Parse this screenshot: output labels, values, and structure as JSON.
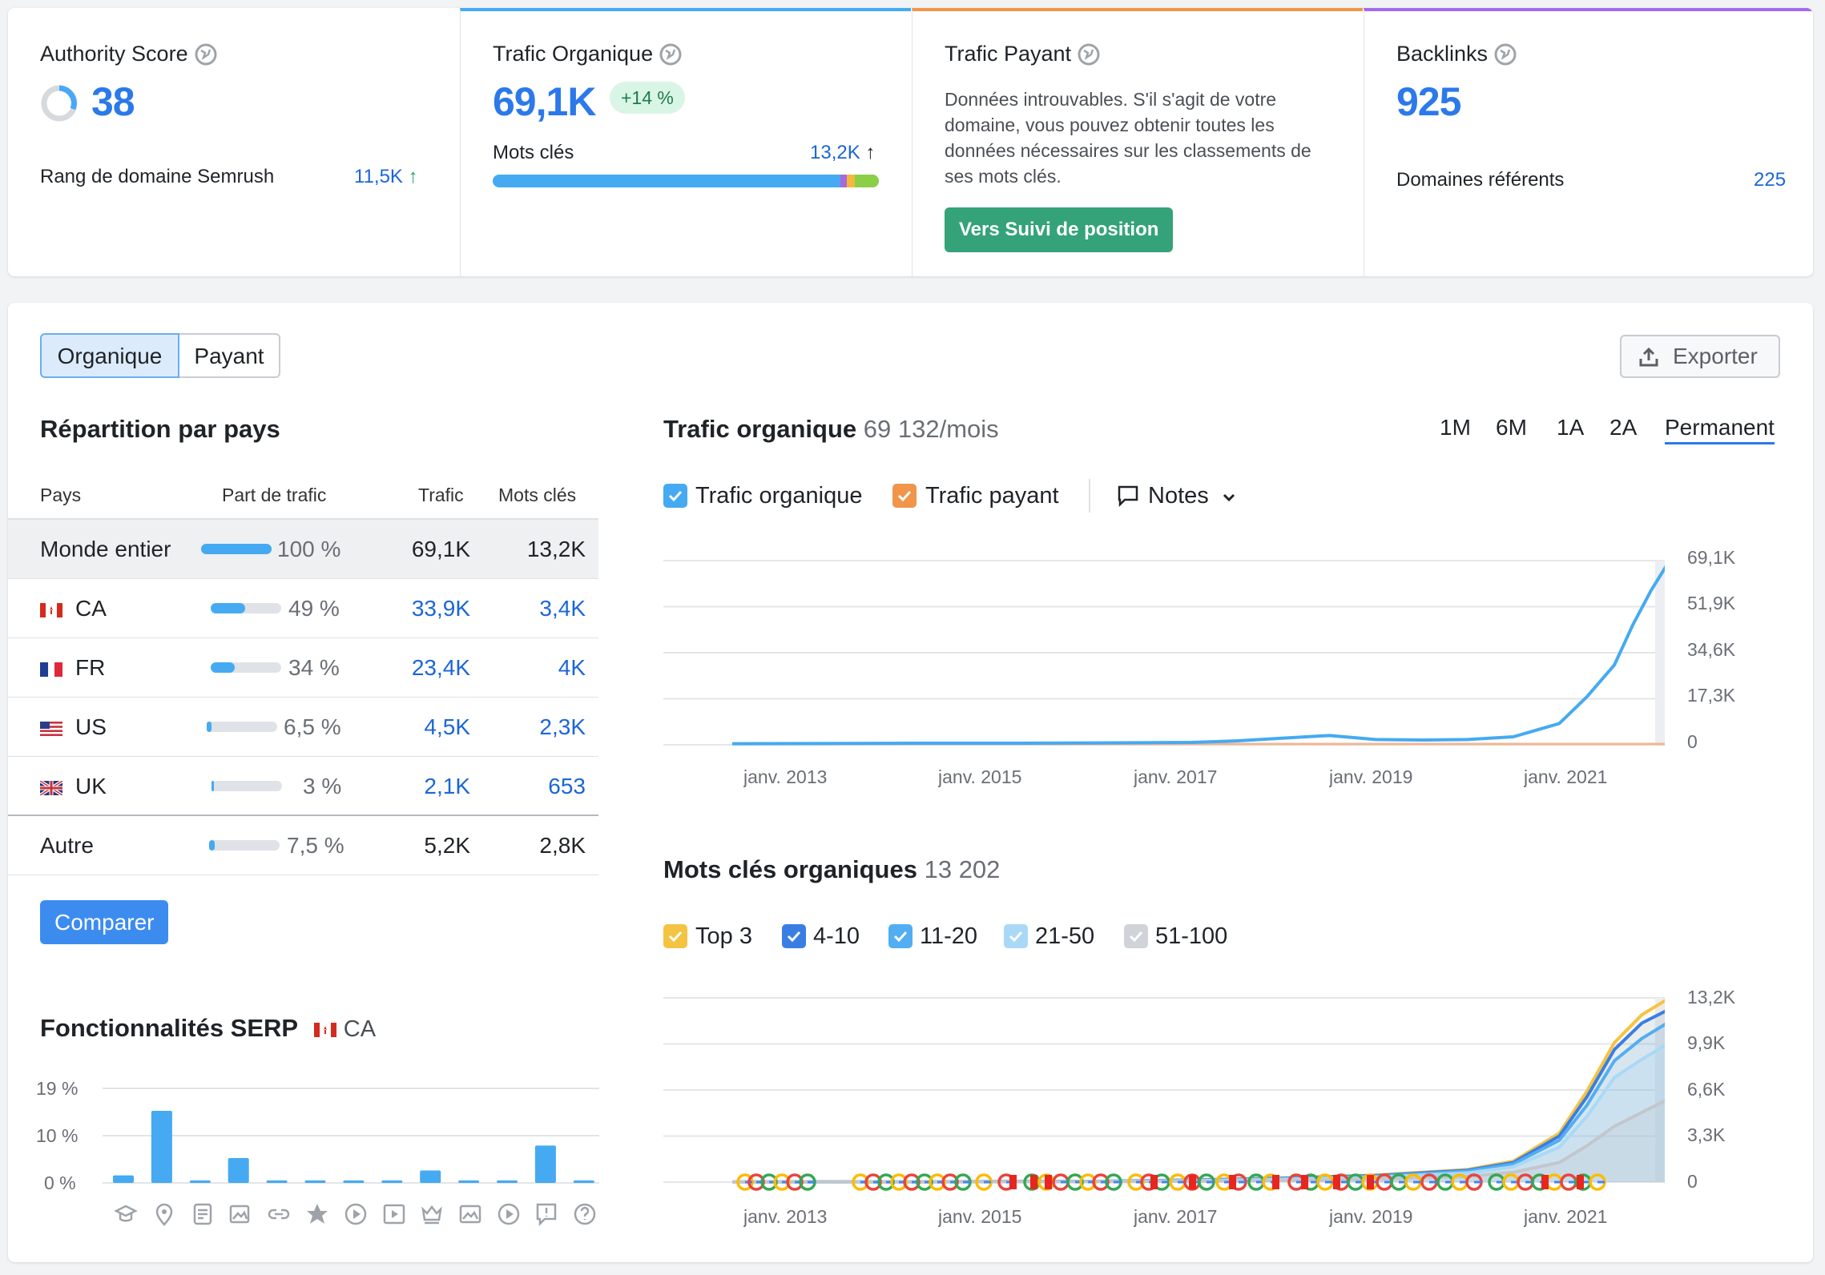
{
  "kpis": {
    "authority": {
      "title": "Authority Score",
      "value": "38",
      "rank_label": "Rang de domaine Semrush",
      "rank_value": "11,5K"
    },
    "organic": {
      "title": "Trafic Organique",
      "value": "69,1K",
      "badge": "+14 %",
      "kw_label": "Mots clés",
      "kw_value": "13,2K"
    },
    "paid": {
      "title": "Trafic Payant",
      "text": "Données introuvables. S'il s'agit de votre domaine, vous pouvez obtenir toutes les données nécessaires sur les classements de ses mots clés.",
      "button": "Vers Suivi de position"
    },
    "backlinks": {
      "title": "Backlinks",
      "value": "925",
      "ref_label": "Domaines référents",
      "ref_value": "225"
    }
  },
  "tabs": {
    "organic": "Organique",
    "paid": "Payant"
  },
  "export_label": "Exporter",
  "countries": {
    "title": "Répartition par pays",
    "headers": {
      "country": "Pays",
      "share": "Part de trafic",
      "traffic": "Trafic",
      "keywords": "Mots clés"
    },
    "rows": [
      {
        "name": "Monde entier",
        "share": "100 %",
        "share_value": 100,
        "traffic": "69,1K",
        "keywords": "13,2K"
      },
      {
        "name": "CA",
        "share": "49 %",
        "share_value": 49,
        "traffic": "33,9K",
        "keywords": "3,4K"
      },
      {
        "name": "FR",
        "share": "34 %",
        "share_value": 34,
        "traffic": "23,4K",
        "keywords": "4K"
      },
      {
        "name": "US",
        "share": "6,5 %",
        "share_value": 6.5,
        "traffic": "4,5K",
        "keywords": "2,3K"
      },
      {
        "name": "UK",
        "share": "3 %",
        "share_value": 3,
        "traffic": "2,1K",
        "keywords": "653"
      },
      {
        "name": "Autre",
        "share": "7,5 %",
        "share_value": 7.5,
        "traffic": "5,2K",
        "keywords": "2,8K"
      }
    ],
    "compare_button": "Comparer"
  },
  "serp": {
    "title": "Fonctionnalités SERP",
    "country": "CA"
  },
  "traffic_chart": {
    "title": "Trafic organique",
    "subtitle": "69 132/mois",
    "periods": [
      "1M",
      "6M",
      "1A",
      "2A",
      "Permanent"
    ],
    "active_period": "Permanent",
    "legend": {
      "organic": "Trafic organique",
      "paid": "Trafic payant",
      "notes": "Notes"
    }
  },
  "keywords_chart": {
    "title": "Mots clés organiques",
    "subtitle": "13 202",
    "legend": [
      "Top 3",
      "4-10",
      "11-20",
      "21-50",
      "51-100"
    ]
  },
  "chart_data": [
    {
      "type": "line",
      "yticks": [
        "69,1K",
        "51,9K",
        "34,6K",
        "17,3K",
        "0"
      ],
      "xticks": [
        "janv. 2013",
        "janv. 2015",
        "janv. 2017",
        "janv. 2019",
        "janv. 2021"
      ],
      "ylim": [
        0,
        69100
      ],
      "x": [
        2012.0,
        2013.0,
        2014.0,
        2015.0,
        2016.0,
        2017.0,
        2017.5,
        2018.0,
        2018.5,
        2019.0,
        2019.5,
        2020.0,
        2020.5,
        2021.0,
        2021.3,
        2021.6,
        2021.8,
        2022.0,
        2022.2
      ],
      "series": [
        {
          "name": "Trafic organique",
          "values": [
            400,
            500,
            600,
            600,
            700,
            900,
            1500,
            2500,
            3500,
            2000,
            1800,
            2000,
            3000,
            8000,
            18000,
            30000,
            45000,
            58000,
            69100
          ]
        },
        {
          "name": "Trafic payant",
          "values": [
            0,
            0,
            0,
            0,
            0,
            0,
            0,
            0,
            0,
            0,
            0,
            0,
            0,
            0,
            0,
            0,
            0,
            0,
            0
          ]
        }
      ]
    },
    {
      "type": "area",
      "yticks": [
        "13,2K",
        "9,9K",
        "6,6K",
        "3,3K",
        "0"
      ],
      "xticks": [
        "janv. 2013",
        "janv. 2015",
        "janv. 2017",
        "janv. 2019",
        "janv. 2021"
      ],
      "ylim": [
        0,
        13200
      ],
      "x": [
        2012.0,
        2013.0,
        2014.0,
        2015.0,
        2016.0,
        2017.0,
        2018.0,
        2019.0,
        2020.0,
        2020.5,
        2021.0,
        2021.3,
        2021.6,
        2021.9,
        2022.2
      ],
      "series": [
        {
          "name": "Top 3",
          "values": [
            10,
            20,
            30,
            40,
            60,
            150,
            300,
            500,
            900,
            1500,
            3500,
            6500,
            10000,
            12000,
            13202
          ]
        },
        {
          "name": "4-10",
          "values": [
            10,
            20,
            30,
            40,
            60,
            140,
            280,
            470,
            850,
            1400,
            3300,
            6100,
            9500,
            11400,
            12400
          ]
        },
        {
          "name": "11-20",
          "values": [
            10,
            15,
            25,
            35,
            50,
            120,
            250,
            420,
            780,
            1300,
            3000,
            5500,
            8700,
            10300,
            11500
          ]
        },
        {
          "name": "21-50",
          "values": [
            5,
            10,
            20,
            30,
            40,
            100,
            200,
            350,
            650,
            1100,
            2500,
            4700,
            7500,
            8800,
            10000
          ]
        },
        {
          "name": "51-100",
          "values": [
            0,
            5,
            10,
            20,
            30,
            60,
            120,
            220,
            400,
            700,
            1400,
            2600,
            4000,
            5000,
            6000
          ]
        }
      ]
    },
    {
      "type": "bar",
      "yticks": [
        "19 %",
        "10 %",
        "0 %"
      ],
      "ylim": [
        0,
        19
      ],
      "categories": [
        "knowledge-panel",
        "local-pack",
        "featured-snippet",
        "image-pack",
        "sitelinks",
        "reviews",
        "video",
        "featured-video",
        "top-stories",
        "image",
        "video-carousel",
        "people-also-ask",
        "faq"
      ],
      "values": [
        1.5,
        14.5,
        0.5,
        5,
        0.5,
        0.5,
        0.5,
        0.5,
        2.5,
        0.5,
        0.5,
        7.5,
        0.5
      ]
    }
  ]
}
